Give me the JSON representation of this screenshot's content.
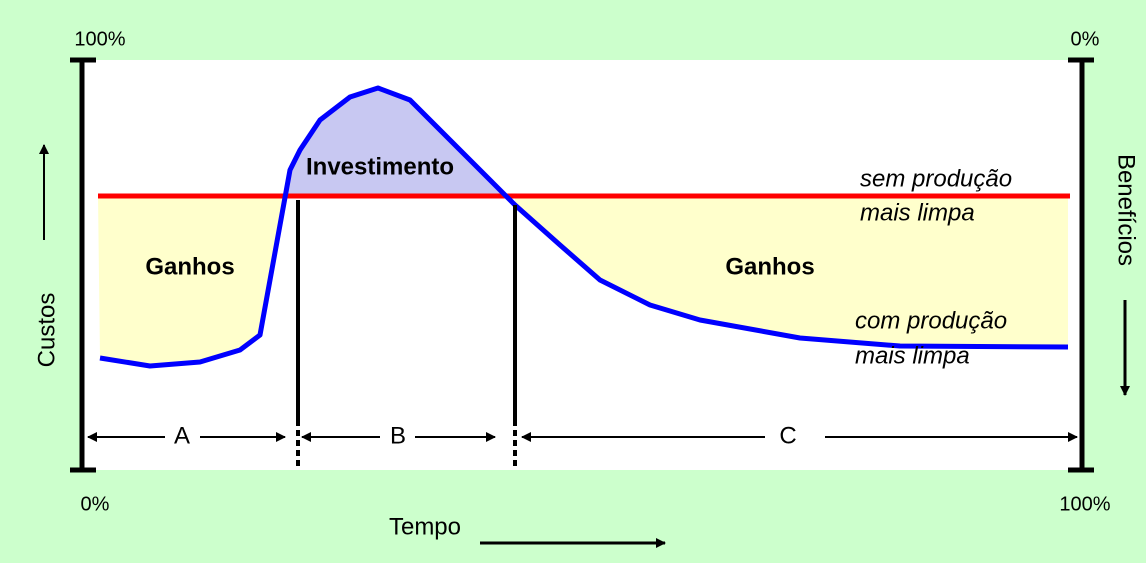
{
  "axes": {
    "left_top": "100%",
    "left_bottom": "0%",
    "right_top": "0%",
    "right_bottom": "100%",
    "left_label": "Custos",
    "right_label": "Benefícios",
    "bottom_label": "Tempo"
  },
  "labels": {
    "investment": "Investimento",
    "gains_left": "Ganhos",
    "gains_right": "Ganhos",
    "without_1": "sem produção",
    "without_2": "mais limpa",
    "with_1": "com produção",
    "with_2": "mais limpa"
  },
  "phases": [
    "A",
    "B",
    "C"
  ]
}
